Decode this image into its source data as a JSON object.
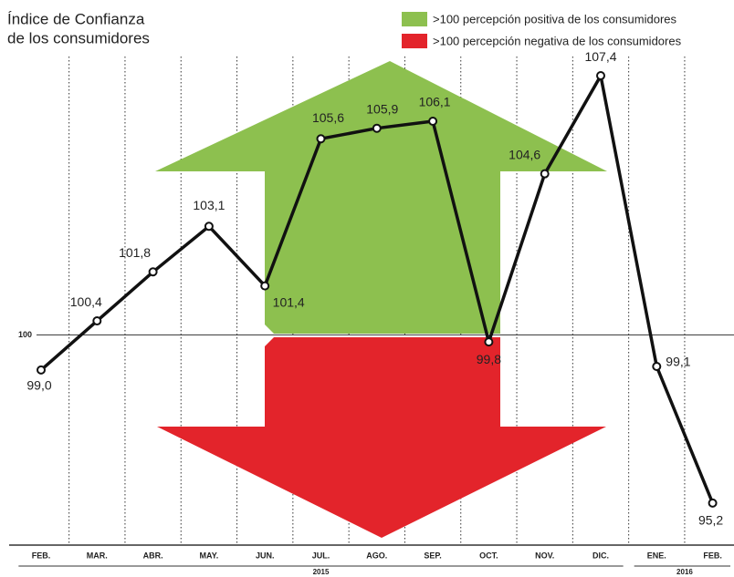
{
  "chart_data": {
    "type": "line",
    "title": "Índice de Confianza",
    "subtitle": "de los consumidores",
    "categories": [
      "FEB.",
      "MAR.",
      "ABR.",
      "MAY.",
      "JUN.",
      "JUL.",
      "AGO.",
      "SEP.",
      "OCT.",
      "NOV.",
      "DIC.",
      "ENE.",
      "FEB."
    ],
    "values": [
      99.0,
      100.4,
      101.8,
      103.1,
      101.4,
      105.6,
      105.9,
      106.1,
      99.8,
      104.6,
      107.4,
      99.1,
      95.2
    ],
    "value_labels": [
      "99,0",
      "100,4",
      "101,8",
      "103,1",
      "101,4",
      "105,6",
      "105,9",
      "106,1",
      "99,8",
      "104,6",
      "107,4",
      "99,1",
      "95,2"
    ],
    "color": "#111111",
    "ylim": [
      94,
      108
    ],
    "yticks": [
      100
    ],
    "legend": [
      {
        "label": ">100 percepción positiva de los consumidores",
        "color": "#8dc04f"
      },
      {
        "label": ">100 percepción negativa de los consumidores",
        "color": "#e3242b"
      }
    ],
    "year_groups": [
      {
        "label": "2015",
        "count": 11
      },
      {
        "label": "2016",
        "count": 2
      }
    ]
  }
}
